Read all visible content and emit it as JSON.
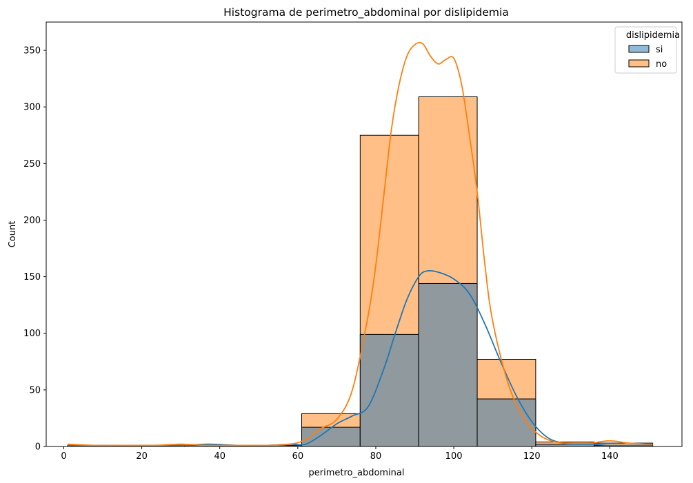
{
  "chart_data": {
    "type": "histogram",
    "title": "Histograma de perimetro_abdominal por dislipidemia",
    "xlabel": "perimetro_abdominal",
    "ylabel": "Count",
    "xlim": [
      -4.5,
      158.5
    ],
    "ylim": [
      0,
      375
    ],
    "xticks": [
      0,
      20,
      40,
      60,
      80,
      100,
      120,
      140
    ],
    "yticks": [
      0,
      50,
      100,
      150,
      200,
      250,
      300,
      350
    ],
    "bin_edges": [
      1,
      16,
      31,
      46,
      61,
      76,
      91,
      106,
      121,
      136,
      151
    ],
    "colors": {
      "si_fill": "#1f77b4",
      "no_fill": "#ff7f0e",
      "overlap_fill": "#8f999e",
      "si_line": "#1f77b4",
      "no_line": "#ff7f0e"
    },
    "legend": {
      "title": "dislipidemia",
      "location": "upper right",
      "entries": [
        "si",
        "no"
      ]
    },
    "series": [
      {
        "name": "si",
        "counts": [
          1,
          0,
          1,
          1,
          17,
          99,
          144,
          42,
          2,
          1
        ]
      },
      {
        "name": "no",
        "counts": [
          1,
          1,
          0,
          1,
          29,
          275,
          309,
          77,
          4,
          3
        ]
      }
    ],
    "kde": [
      {
        "name": "si",
        "x": [
          1,
          10,
          20,
          30,
          37,
          45,
          52,
          58,
          62,
          66,
          70,
          74,
          78,
          82,
          85,
          88,
          91,
          93,
          96,
          100,
          104,
          108,
          112,
          116,
          120,
          124,
          128,
          132,
          136,
          140,
          145,
          151
        ],
        "y": [
          1,
          1,
          1,
          1,
          2,
          1,
          1,
          2,
          2,
          10,
          20,
          27,
          35,
          68,
          100,
          130,
          150,
          155,
          154,
          148,
          135,
          108,
          75,
          45,
          22,
          8,
          3,
          2,
          2,
          1,
          1,
          1
        ]
      },
      {
        "name": "no",
        "x": [
          1,
          8,
          15,
          23,
          30,
          37,
          45,
          52,
          58,
          62,
          66,
          70,
          74,
          78,
          80,
          82,
          84,
          86,
          88,
          90,
          92,
          94,
          96,
          98,
          100,
          102,
          104,
          106,
          108,
          110,
          114,
          118,
          122,
          126,
          130,
          135,
          140,
          145,
          151
        ],
        "y": [
          2,
          1,
          1,
          1,
          2,
          1,
          1,
          1,
          2,
          6,
          16,
          24,
          50,
          115,
          160,
          220,
          280,
          320,
          345,
          355,
          356,
          345,
          338,
          342,
          343,
          320,
          275,
          225,
          160,
          110,
          55,
          25,
          10,
          4,
          3,
          3,
          5,
          3,
          2
        ]
      }
    ]
  }
}
